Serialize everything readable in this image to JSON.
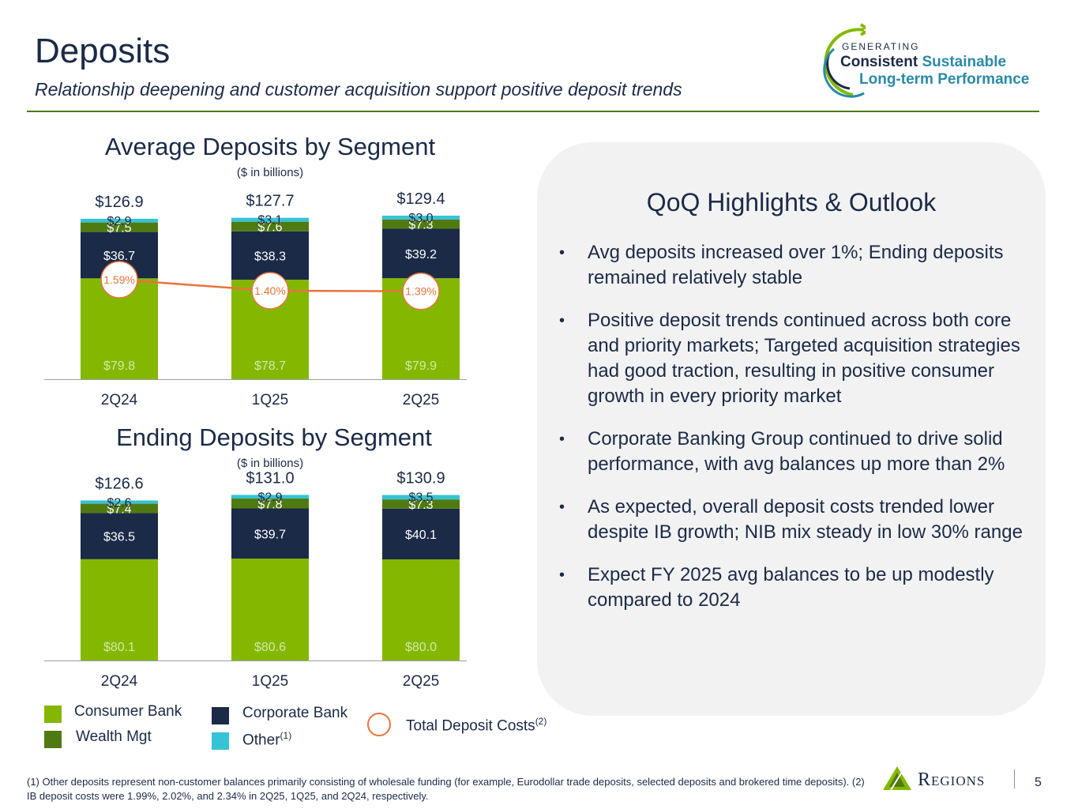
{
  "header": {
    "title": "Deposits",
    "subtitle": "Relationship deepening and customer acquisition support positive deposit trends"
  },
  "logo": {
    "top": "GENERATING",
    "line1_a": "Consistent",
    "line1_b": "Sustainable",
    "line2": "Long-term Performance"
  },
  "colors": {
    "consumer": "#84b800",
    "wealth": "#4f7a12",
    "corporate": "#1b2a47",
    "other": "#36c3d6",
    "cost_line": "#e8743b",
    "value_label_light": "#d2e8a8"
  },
  "chart_data": [
    {
      "type": "bar",
      "stacked": true,
      "title": "Average Deposits by Segment",
      "unit": "($ in billions)",
      "categories": [
        "2Q24",
        "1Q25",
        "2Q25"
      ],
      "series": [
        {
          "name": "Consumer Bank",
          "values": [
            79.8,
            78.7,
            79.9
          ],
          "labels": [
            "$79.8",
            "$78.7",
            "$79.9"
          ]
        },
        {
          "name": "Corporate Bank",
          "values": [
            36.7,
            38.3,
            39.2
          ],
          "labels": [
            "$36.7",
            "$38.3",
            "$39.2"
          ]
        },
        {
          "name": "Wealth Mgt",
          "values": [
            7.5,
            7.6,
            7.3
          ],
          "labels": [
            "$7.5",
            "$7.6",
            "$7.3"
          ]
        },
        {
          "name": "Other",
          "values": [
            2.9,
            3.1,
            3.0
          ],
          "labels": [
            "$2.9",
            "$3.1",
            "$3.0"
          ]
        }
      ],
      "totals": [
        "$126.9",
        "$127.7",
        "$129.4"
      ],
      "line": {
        "name": "Total Deposit Costs",
        "values": [
          1.59,
          1.4,
          1.39
        ],
        "labels": [
          "1.59%",
          "1.40%",
          "1.39%"
        ]
      }
    },
    {
      "type": "bar",
      "stacked": true,
      "title": "Ending Deposits by Segment",
      "unit": "($ in billions)",
      "categories": [
        "2Q24",
        "1Q25",
        "2Q25"
      ],
      "series": [
        {
          "name": "Consumer Bank",
          "values": [
            80.1,
            80.6,
            80.0
          ],
          "labels": [
            "$80.1",
            "$80.6",
            "$80.0"
          ]
        },
        {
          "name": "Corporate Bank",
          "values": [
            36.5,
            39.7,
            40.1
          ],
          "labels": [
            "$36.5",
            "$39.7",
            "$40.1"
          ]
        },
        {
          "name": "Wealth Mgt",
          "values": [
            7.4,
            7.8,
            7.3
          ],
          "labels": [
            "$7.4",
            "$7.8",
            "$7.3"
          ]
        },
        {
          "name": "Other",
          "values": [
            2.6,
            2.9,
            3.5
          ],
          "labels": [
            "$2.6",
            "$2.9",
            "$3.5"
          ]
        }
      ],
      "totals": [
        "$126.6",
        "$131.0",
        "$130.9"
      ]
    }
  ],
  "panel": {
    "title": "QoQ Highlights & Outlook",
    "bullets": [
      "Avg deposits increased over 1%; Ending deposits remained relatively stable",
      "Positive deposit trends continued across both core and priority markets; Targeted acquisition strategies had good traction, resulting in positive consumer growth in every priority market",
      "Corporate Banking Group continued to drive solid performance, with avg balances up more than 2%",
      "As expected, overall deposit costs trended lower despite IB growth; NIB mix steady in low 30% range",
      "Expect FY 2025 avg balances to be up modestly compared to 2024"
    ]
  },
  "legend": {
    "consumer": "Consumer Bank",
    "wealth": "Wealth Mgt",
    "corporate": "Corporate Bank",
    "other": "Other",
    "other_sup": "(1)",
    "cost": "Total Deposit Costs",
    "cost_sup": "(2)"
  },
  "footer": {
    "footnote": "(1) Other deposits represent non-customer balances primarily consisting of wholesale funding (for example, Eurodollar trade deposits, selected deposits and brokered time deposits).  (2) IB deposit costs were 1.99%, 2.02%, and 2.34% in 2Q25, 1Q25, and 2Q24, respectively.",
    "brand": "Regions",
    "page": "5"
  }
}
